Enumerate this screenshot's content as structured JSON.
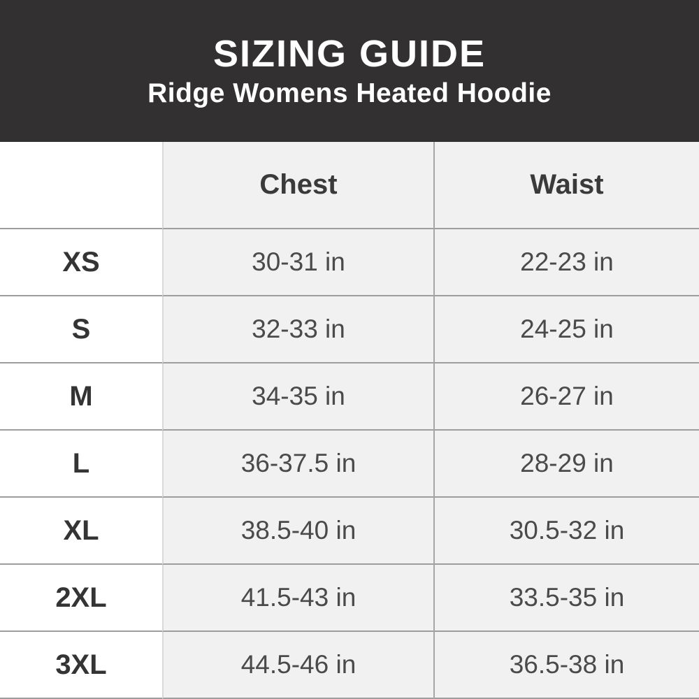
{
  "header": {
    "title": "SIZING GUIDE",
    "subtitle": "Ridge Womens Heated Hoodie"
  },
  "colors": {
    "banner_bg": "#333031",
    "banner_text": "#ffffff",
    "cell_gray": "#f2f1f1",
    "row_divider": "#9e9e9e",
    "column_divider": "#a6a6a6",
    "label_text": "#343434",
    "value_text": "#4a4a4a"
  },
  "chart_data": {
    "type": "table",
    "title": "SIZING GUIDE",
    "subtitle": "Ridge Womens Heated Hoodie",
    "columns": [
      "",
      "Chest",
      "Waist"
    ],
    "unit": "in",
    "rows": [
      {
        "size": "XS",
        "chest": "30-31 in",
        "waist": "22-23 in"
      },
      {
        "size": "S",
        "chest": "32-33 in",
        "waist": "24-25 in"
      },
      {
        "size": "M",
        "chest": "34-35 in",
        "waist": "26-27 in"
      },
      {
        "size": "L",
        "chest": "36-37.5 in",
        "waist": "28-29 in"
      },
      {
        "size": "XL",
        "chest": "38.5-40 in",
        "waist": "30.5-32 in"
      },
      {
        "size": "2XL",
        "chest": "41.5-43 in",
        "waist": "33.5-35 in"
      },
      {
        "size": "3XL",
        "chest": "44.5-46 in",
        "waist": "36.5-38 in"
      }
    ]
  }
}
